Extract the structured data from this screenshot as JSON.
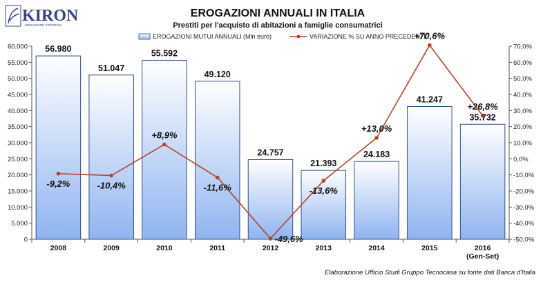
{
  "logo": {
    "brand": "KIRON",
    "tagline": "MEDIAZIONE CREDITIZIA",
    "reg": "®"
  },
  "header": {
    "title": "EROGAZIONI ANNUALI IN ITALIA",
    "subtitle": "Prestiti per l'acquisto di abitazioni a famiglie consumatrici"
  },
  "legend": {
    "bars": "EROGAZIONI MUTUI ANNUALI (Mln euro)",
    "line": "VARIAZIONE % SU ANNO PRECEDENTE"
  },
  "source": "Elaborazione Ufficio Studi Gruppo Tecnocasa su fonte dati Banca d'Italia",
  "colors": {
    "bar_top": "#ffffff",
    "bar_bottom": "#8fb4f0",
    "bar_stroke": "#2f4f86",
    "line": "#b5432a",
    "axis": "#555555"
  },
  "chart_data": {
    "type": "bar+line",
    "title": "EROGAZIONI ANNUALI IN ITALIA",
    "subtitle": "Prestiti per l'acquisto di abitazioni a famiglie consumatrici",
    "categories": [
      {
        "label": "2008",
        "sub": ""
      },
      {
        "label": "2009",
        "sub": ""
      },
      {
        "label": "2010",
        "sub": ""
      },
      {
        "label": "2011",
        "sub": ""
      },
      {
        "label": "2012",
        "sub": ""
      },
      {
        "label": "2013",
        "sub": ""
      },
      {
        "label": "2014",
        "sub": ""
      },
      {
        "label": "2015",
        "sub": ""
      },
      {
        "label": "2016",
        "sub": "(Gen-Set)"
      }
    ],
    "bar_series": {
      "name": "EROGAZIONI MUTUI ANNUALI (Mln euro)",
      "values": [
        56980,
        51047,
        55592,
        49120,
        24757,
        21393,
        24183,
        41247,
        35732
      ],
      "labels": [
        "56.980",
        "51.047",
        "55.592",
        "49.120",
        "24.757",
        "21.393",
        "24.183",
        "41.247",
        "35.732"
      ]
    },
    "line_series": {
      "name": "VARIAZIONE % SU ANNO PRECEDENTE",
      "values": [
        -9.2,
        -10.4,
        8.9,
        -11.6,
        -49.6,
        -13.6,
        13.0,
        70.6,
        26.8
      ],
      "labels": [
        "-9,2%",
        "-10,4%",
        "+8,9%",
        "-11,6%",
        "-49,6%",
        "-13,6%",
        "+13,0%",
        "+70,6%",
        "+26,8%"
      ]
    },
    "y_left": {
      "min": 0,
      "max": 60000,
      "ticks": [
        "0",
        "5.000",
        "10.000",
        "15.000",
        "20.000",
        "25.000",
        "30.000",
        "35.000",
        "40.000",
        "45.000",
        "50.000",
        "55.000",
        "60.000"
      ]
    },
    "y_right": {
      "min": -50,
      "max": 70,
      "ticks": [
        "-50,0%",
        "-40,0%",
        "-30,0%",
        "-20,0%",
        "-10,0%",
        "0,0%",
        "10,0%",
        "20,0%",
        "30,0%",
        "40,0%",
        "50,0%",
        "60,0%",
        "70,0%"
      ]
    },
    "legend_position": "top",
    "grid": false
  }
}
